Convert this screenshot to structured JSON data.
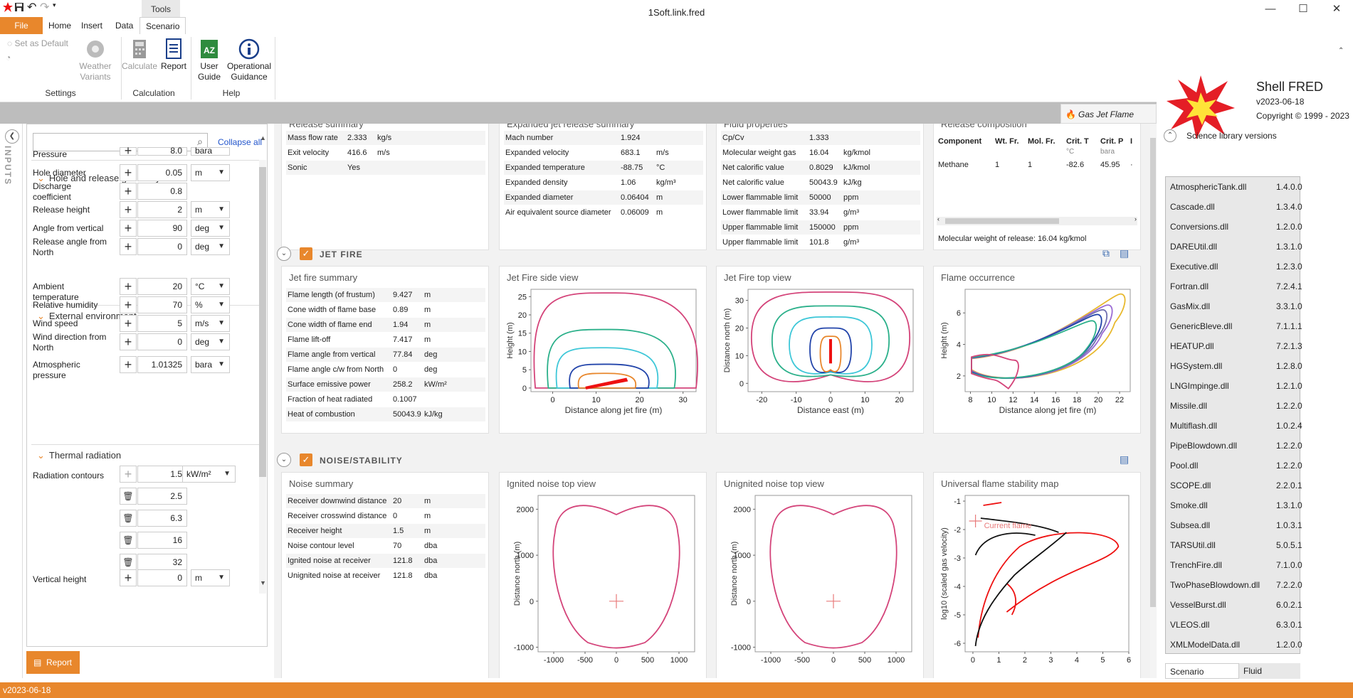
{
  "window": {
    "title": "1Soft.link.fred",
    "context_tab": "Tools",
    "min_icon": "minimize-icon",
    "max_icon": "maximize-icon",
    "close_icon": "close-icon"
  },
  "ribbon_tabs": [
    "File",
    "Home",
    "Insert",
    "Data",
    "Scenario"
  ],
  "ribbon": {
    "settings": {
      "set_default": "Set as Default",
      "weather_variants": "Weather Variants",
      "group_label": "Settings"
    },
    "calculation": {
      "calculate": "Calculate",
      "report": "Report",
      "group_label": "Calculation"
    },
    "help": {
      "user_guide": "User Guide",
      "operational_guidance": "Operational Guidance",
      "group_label": "Help"
    }
  },
  "scenario_tag": "Gas Jet Flame",
  "left_panel": {
    "strip_label": "INPUTS",
    "collapse_all": "Collapse all",
    "pressure_label": "Pressure",
    "pressure_value": "8.0",
    "pressure_unit": "bara",
    "sections": {
      "hole": "Hole and release geometry",
      "external": "External environment",
      "thermal": "Thermal radiation"
    },
    "inputs": [
      {
        "label": "Hole diameter",
        "value": "0.05",
        "unit": "m"
      },
      {
        "label": "Discharge coefficient",
        "value": "0.8",
        "unit": ""
      },
      {
        "label": "Release height",
        "value": "2",
        "unit": "m"
      },
      {
        "label": "Angle from vertical",
        "value": "90",
        "unit": "deg"
      },
      {
        "label": "Release angle from North",
        "value": "0",
        "unit": "deg"
      },
      {
        "label": "Ambient temperature",
        "value": "20",
        "unit": "°C"
      },
      {
        "label": "Relative humidity",
        "value": "70",
        "unit": "%"
      },
      {
        "label": "Wind speed",
        "value": "5",
        "unit": "m/s"
      },
      {
        "label": "Wind direction from North",
        "value": "0",
        "unit": "deg"
      },
      {
        "label": "Atmospheric pressure",
        "value": "1.01325",
        "unit": "bara"
      }
    ],
    "radiation_label": "Radiation contours",
    "radiation_unit": "kW/m²",
    "radiation_values": [
      "1.5",
      "2.5",
      "6.3",
      "16",
      "32"
    ],
    "vertical_height": {
      "label": "Vertical height",
      "value": "0",
      "unit": "m"
    },
    "report_button": "Report"
  },
  "release_summary": {
    "title": "Release summary",
    "rows": [
      [
        "Mass flow rate",
        "2.333",
        "kg/s"
      ],
      [
        "Exit velocity",
        "416.6",
        "m/s"
      ],
      [
        "Sonic",
        "Yes",
        ""
      ]
    ]
  },
  "expanded_jet": {
    "title": "Expanded jet release summary",
    "rows": [
      [
        "Mach number",
        "1.924",
        ""
      ],
      [
        "Expanded velocity",
        "683.1",
        "m/s"
      ],
      [
        "Expanded temperature",
        "-88.75",
        "°C"
      ],
      [
        "Expanded density",
        "1.06",
        "kg/m³"
      ],
      [
        "Expanded diameter",
        "0.06404",
        "m"
      ],
      [
        "Air equivalent source diameter",
        "0.06009",
        "m"
      ]
    ]
  },
  "fluid_properties": {
    "title": "Fluid properties",
    "rows": [
      [
        "Cp/Cv",
        "1.333",
        ""
      ],
      [
        "Molecular weight gas",
        "16.04",
        "kg/kmol"
      ],
      [
        "Net calorific value",
        "0.8029",
        "kJ/kmol"
      ],
      [
        "Net calorific value",
        "50043.9",
        "kJ/kg"
      ],
      [
        "Lower flammable limit",
        "50000",
        "ppm"
      ],
      [
        "Lower flammable limit",
        "33.94",
        "g/m³"
      ],
      [
        "Upper flammable limit",
        "150000",
        "ppm"
      ],
      [
        "Upper flammable limit",
        "101.8",
        "g/m³"
      ]
    ]
  },
  "release_composition": {
    "title": "Release composition",
    "headers": [
      "Component",
      "Wt. Fr.",
      "Mol. Fr.",
      "Crit. T",
      "Crit. P",
      "I"
    ],
    "subheaders": [
      "",
      "",
      "",
      "°C",
      "bara",
      ""
    ],
    "row": [
      "Methane",
      "1",
      "1",
      "-82.6",
      "45.95",
      "·"
    ],
    "footer": "Molecular weight of release: 16.04 kg/kmol"
  },
  "jet_fire": {
    "section": "JET FIRE",
    "summary_title": "Jet fire summary",
    "rows": [
      [
        "Flame length (of frustum)",
        "9.427",
        "m"
      ],
      [
        "Cone width of flame base",
        "0.89",
        "m"
      ],
      [
        "Cone width of flame end",
        "1.94",
        "m"
      ],
      [
        "Flame lift-off",
        "7.417",
        "m"
      ],
      [
        "Flame angle from vertical",
        "77.84",
        "deg"
      ],
      [
        "Flame angle c/w from North",
        "0",
        "deg"
      ],
      [
        "Surface emissive power",
        "258.2",
        "kW/m²"
      ],
      [
        "Fraction of heat radiated",
        "0.1007",
        ""
      ],
      [
        "Heat of combustion",
        "50043.9",
        "kJ/kg"
      ]
    ]
  },
  "noise": {
    "section": "NOISE/STABILITY",
    "summary_title": "Noise summary",
    "rows": [
      [
        "Receiver downwind distance",
        "20",
        "m"
      ],
      [
        "Receiver crosswind distance",
        "0",
        "m"
      ],
      [
        "Receiver height",
        "1.5",
        "m"
      ],
      [
        "Noise contour level",
        "70",
        "dba"
      ],
      [
        "Ignited noise at receiver",
        "121.8",
        "dba"
      ],
      [
        "Unignited noise at receiver",
        "121.8",
        "dba"
      ]
    ]
  },
  "chart_data": [
    {
      "type": "line",
      "title": "Jet Fire side view",
      "xlabel": "Distance along jet fire (m)",
      "ylabel": "Height (m)",
      "xlim": [
        -5,
        33
      ],
      "ylim": [
        -1,
        27
      ],
      "xticks": [
        0,
        10,
        20,
        30
      ],
      "yticks": [
        0,
        5,
        10,
        15,
        20,
        25
      ],
      "series": [
        {
          "color": "#d4447a",
          "x_extent": [
            -4,
            33
          ],
          "y_max": 26
        },
        {
          "color": "#2bb08a",
          "x_extent": [
            -1,
            28
          ],
          "y_max": 16
        },
        {
          "color": "#3ec7d8",
          "x_extent": [
            1,
            24
          ],
          "y_max": 11
        },
        {
          "color": "#2244aa",
          "x_extent": [
            4,
            22
          ],
          "y_max": 6.5
        },
        {
          "color": "#e8872c",
          "x_extent": [
            6,
            19
          ],
          "y_max": 4
        },
        {
          "color": "#ee1111",
          "x_extent": [
            7.5,
            17
          ],
          "y_max": 2.8
        }
      ]
    },
    {
      "type": "line",
      "title": "Jet Fire top view",
      "xlabel": "Distance east (m)",
      "ylabel": "Distance north (m)",
      "xlim": [
        -24,
        24
      ],
      "ylim": [
        -3,
        34
      ],
      "xticks": [
        -20,
        -10,
        0,
        10,
        20
      ],
      "yticks": [
        0,
        10,
        20,
        30
      ],
      "series": [
        {
          "color": "#d4447a",
          "x_extent": [
            -23,
            23
          ],
          "y_max": 33
        },
        {
          "color": "#2bb08a",
          "x_extent": [
            -17,
            17
          ],
          "y_max": 28
        },
        {
          "color": "#3ec7d8",
          "x_extent": [
            -12,
            12
          ],
          "y_max": 24
        },
        {
          "color": "#2244aa",
          "x_extent": [
            -6,
            6
          ],
          "y_max": 20
        },
        {
          "color": "#e8872c",
          "x_extent": [
            -3,
            3
          ],
          "y_max": 17
        },
        {
          "color": "#ee1111",
          "x_extent": [
            -1,
            1
          ],
          "y_max": 16
        }
      ]
    },
    {
      "type": "line",
      "title": "Flame occurrence",
      "xlabel": "Distance along jet fire (m)",
      "ylabel": "Height (m)",
      "xlim": [
        7.5,
        23
      ],
      "ylim": [
        1,
        7.5
      ],
      "xticks": [
        8,
        10,
        12,
        14,
        16,
        18,
        20,
        22
      ],
      "yticks": [
        2,
        4,
        6
      ],
      "series": [
        {
          "color": "#e8b82c",
          "x_max": 22.5,
          "y_max": 7.2
        },
        {
          "color": "#9a6ad4",
          "x_max": 21.3,
          "y_max": 6.5
        },
        {
          "color": "#7070b0",
          "x_max": 20.8,
          "y_max": 6.2
        },
        {
          "color": "#2244aa",
          "x_max": 20.3,
          "y_max": 5.9
        },
        {
          "color": "#2bb08a",
          "x_max": 19.8,
          "y_max": 5.5
        },
        {
          "color": "#d4447a",
          "x_max": 12.5,
          "y_max": 3
        }
      ]
    },
    {
      "type": "line",
      "title": "Ignited noise top view",
      "xlabel": "",
      "ylabel": "Distance north (m)",
      "xlim": [
        -1250,
        1250
      ],
      "ylim": [
        -1100,
        2300
      ],
      "xticks": [
        -1000,
        -500,
        0,
        500,
        1000
      ],
      "yticks": [
        -1000,
        0,
        1000,
        2000
      ],
      "series": [
        {
          "color": "#d4447a",
          "x_extent": [
            -1050,
            1050
          ],
          "y_max": 2100
        }
      ]
    },
    {
      "type": "line",
      "title": "Unignited noise top view",
      "xlabel": "",
      "ylabel": "Distance north (m)",
      "xlim": [
        -1250,
        1250
      ],
      "ylim": [
        -1100,
        2300
      ],
      "xticks": [
        -1000,
        -500,
        0,
        500,
        1000
      ],
      "yticks": [
        -1000,
        0,
        1000,
        2000
      ],
      "series": [
        {
          "color": "#d4447a",
          "x_extent": [
            -1050,
            1050
          ],
          "y_max": 2100
        }
      ]
    },
    {
      "type": "line",
      "title": "Universal flame stability map",
      "xlabel": "",
      "ylabel": "log10 (scaled gas velocity)",
      "xlim": [
        -0.3,
        6
      ],
      "ylim": [
        -6.3,
        -0.8
      ],
      "xticks": [
        0,
        1,
        2,
        3,
        4,
        5,
        6
      ],
      "yticks": [
        -1,
        -2,
        -3,
        -4,
        -5,
        -6
      ],
      "annotation": "Current flame",
      "series": [
        {
          "color": "#ee1111"
        },
        {
          "color": "#111111"
        }
      ]
    }
  ],
  "right_panel": {
    "app_name": "Shell FRED",
    "version": "v2023-06-18",
    "copyright": "Copyright © 1999 - 2023",
    "science_header": "Science library versions",
    "libraries": [
      [
        "AtmosphericTank.dll",
        "1.4.0.0"
      ],
      [
        "Cascade.dll",
        "1.3.4.0"
      ],
      [
        "Conversions.dll",
        "1.2.0.0"
      ],
      [
        "DAREUtil.dll",
        "1.3.1.0"
      ],
      [
        "Executive.dll",
        "1.2.3.0"
      ],
      [
        "Fortran.dll",
        "7.2.4.1"
      ],
      [
        "GasMix.dll",
        "3.3.1.0"
      ],
      [
        "GenericBleve.dll",
        "7.1.1.1"
      ],
      [
        "HEATUP.dll",
        "7.2.1.3"
      ],
      [
        "HGSystem.dll",
        "1.2.8.0"
      ],
      [
        "LNGImpinge.dll",
        "1.2.1.0"
      ],
      [
        "Missile.dll",
        "1.2.2.0"
      ],
      [
        "Multiflash.dll",
        "1.0.2.4"
      ],
      [
        "PipeBlowdown.dll",
        "1.2.2.0"
      ],
      [
        "Pool.dll",
        "1.2.2.0"
      ],
      [
        "SCOPE.dll",
        "2.2.0.1"
      ],
      [
        "Smoke.dll",
        "1.3.1.0"
      ],
      [
        "Subsea.dll",
        "1.0.3.1"
      ],
      [
        "TARSUtil.dll",
        "5.0.5.1"
      ],
      [
        "TrenchFire.dll",
        "7.1.0.0"
      ],
      [
        "TwoPhaseBlowdown.dll",
        "7.2.2.0"
      ],
      [
        "VesselBurst.dll",
        "6.0.2.1"
      ],
      [
        "VLEOS.dll",
        "6.3.0.1"
      ],
      [
        "XMLModelData.dll",
        "1.2.0.0"
      ]
    ],
    "tabs": [
      "Scenario Explorer",
      "Fluid Explorer"
    ]
  },
  "status": {
    "version": "v2023-06-18"
  },
  "colors": {
    "accent": "#e8872c",
    "band": "#bdbdbd",
    "link": "#2255cc"
  }
}
